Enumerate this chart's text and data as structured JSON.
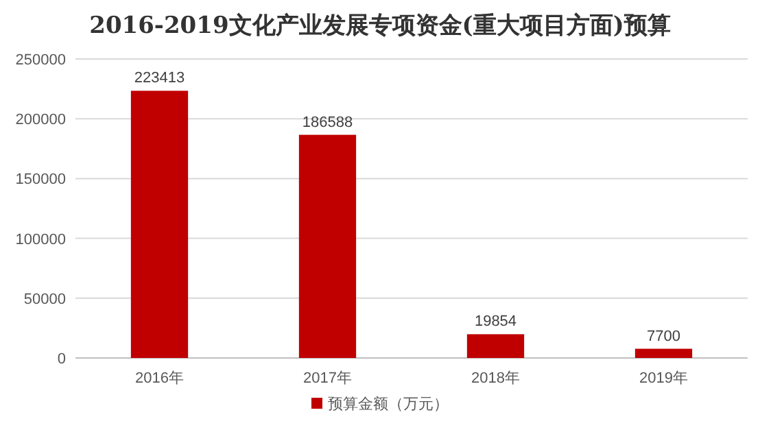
{
  "chart_data": {
    "type": "bar",
    "title": "2016-2019文化产业发展专项资金(重大项目方面)预算",
    "categories": [
      "2016年",
      "2017年",
      "2018年",
      "2019年"
    ],
    "series": [
      {
        "name": "预算金额（万元）",
        "color": "#c00000",
        "values": [
          223413,
          186588,
          19854,
          7700
        ]
      }
    ],
    "ylim": [
      0,
      250000
    ],
    "yticks": [
      0,
      50000,
      100000,
      150000,
      200000,
      250000
    ],
    "grid": "y",
    "data_labels": true,
    "legend": "bottom"
  }
}
